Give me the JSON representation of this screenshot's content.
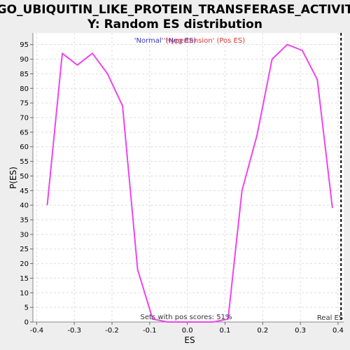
{
  "chart_data": {
    "type": "line",
    "title_line1": "GO_UBIQUITIN_LIKE_PROTEIN_TRANSFERASE_ACTIVIT",
    "title_line2": "Y: Random ES distribution",
    "xlabel": "ES",
    "ylabel": "P(ES)",
    "xlim": [
      -0.41,
      0.415
    ],
    "ylim": [
      0,
      99
    ],
    "x_ticks": [
      -0.4,
      -0.3,
      -0.2,
      -0.1,
      0.0,
      0.1,
      0.2,
      0.3,
      0.4
    ],
    "x_tick_labels": [
      "-0.4",
      "-0.3",
      "-0.2",
      "-0.1",
      "0.0",
      "0.1",
      "0.2",
      "0.3",
      "0.4"
    ],
    "y_ticks": [
      0,
      5,
      10,
      15,
      20,
      25,
      30,
      35,
      40,
      45,
      50,
      55,
      60,
      65,
      70,
      75,
      80,
      85,
      90,
      95
    ],
    "y_tick_labels": [
      "0",
      "5",
      "10",
      "15",
      "20",
      "25",
      "30",
      "35",
      "40",
      "45",
      "50",
      "55",
      "60",
      "65",
      "70",
      "75",
      "80",
      "85",
      "90",
      "95"
    ],
    "grid": true,
    "legend": {
      "placement": "top-center",
      "items": [
        {
          "label": "'Normal' (Neg ES)",
          "color": "#3333cc"
        },
        {
          "label": "'Hypertension' (Pos ES)",
          "color": "#dd3333"
        }
      ]
    },
    "series": [
      {
        "color": "#ee44ee",
        "x": [
          -0.372,
          -0.332,
          -0.292,
          -0.252,
          -0.212,
          -0.172,
          -0.132,
          -0.092,
          -0.052,
          -0.012,
          0.028,
          0.068,
          0.108,
          0.145,
          0.185,
          0.225,
          0.265,
          0.305,
          0.345,
          0.385
        ],
        "y": [
          40,
          92,
          88,
          92,
          85,
          74,
          18,
          1,
          0,
          0,
          0,
          0,
          1,
          45,
          64,
          90,
          95,
          93,
          83,
          39
        ]
      }
    ],
    "real_es": {
      "x": 0.408,
      "label": "Real ES"
    },
    "annotation": "Sets with pos scores: 51%"
  }
}
